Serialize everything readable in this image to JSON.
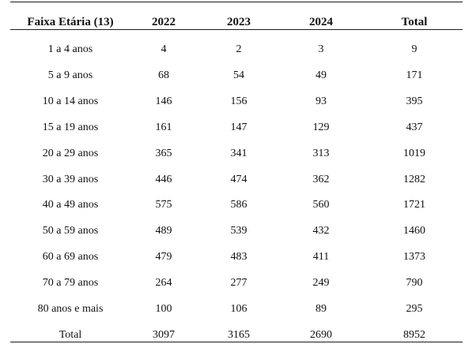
{
  "table": {
    "headers": [
      "Faixa Etária (13)",
      "2022",
      "2023",
      "2024",
      "Total"
    ],
    "rows": [
      [
        "1 a 4 anos",
        "4",
        "2",
        "3",
        "9"
      ],
      [
        "5 a 9 anos",
        "68",
        "54",
        "49",
        "171"
      ],
      [
        "10 a 14 anos",
        "146",
        "156",
        "93",
        "395"
      ],
      [
        "15 a 19 anos",
        "161",
        "147",
        "129",
        "437"
      ],
      [
        "20 a 29 anos",
        "365",
        "341",
        "313",
        "1019"
      ],
      [
        "30 a 39 anos",
        "446",
        "474",
        "362",
        "1282"
      ],
      [
        "40 a 49 anos",
        "575",
        "586",
        "560",
        "1721"
      ],
      [
        "50 a 59 anos",
        "489",
        "539",
        "432",
        "1460"
      ],
      [
        "60 a 69 anos",
        "479",
        "483",
        "411",
        "1373"
      ],
      [
        "70 a 79 anos",
        "264",
        "277",
        "249",
        "790"
      ],
      [
        "80 anos e mais",
        "100",
        "106",
        "89",
        "295"
      ],
      [
        "Total",
        "3097",
        "3165",
        "2690",
        "8952"
      ]
    ]
  }
}
